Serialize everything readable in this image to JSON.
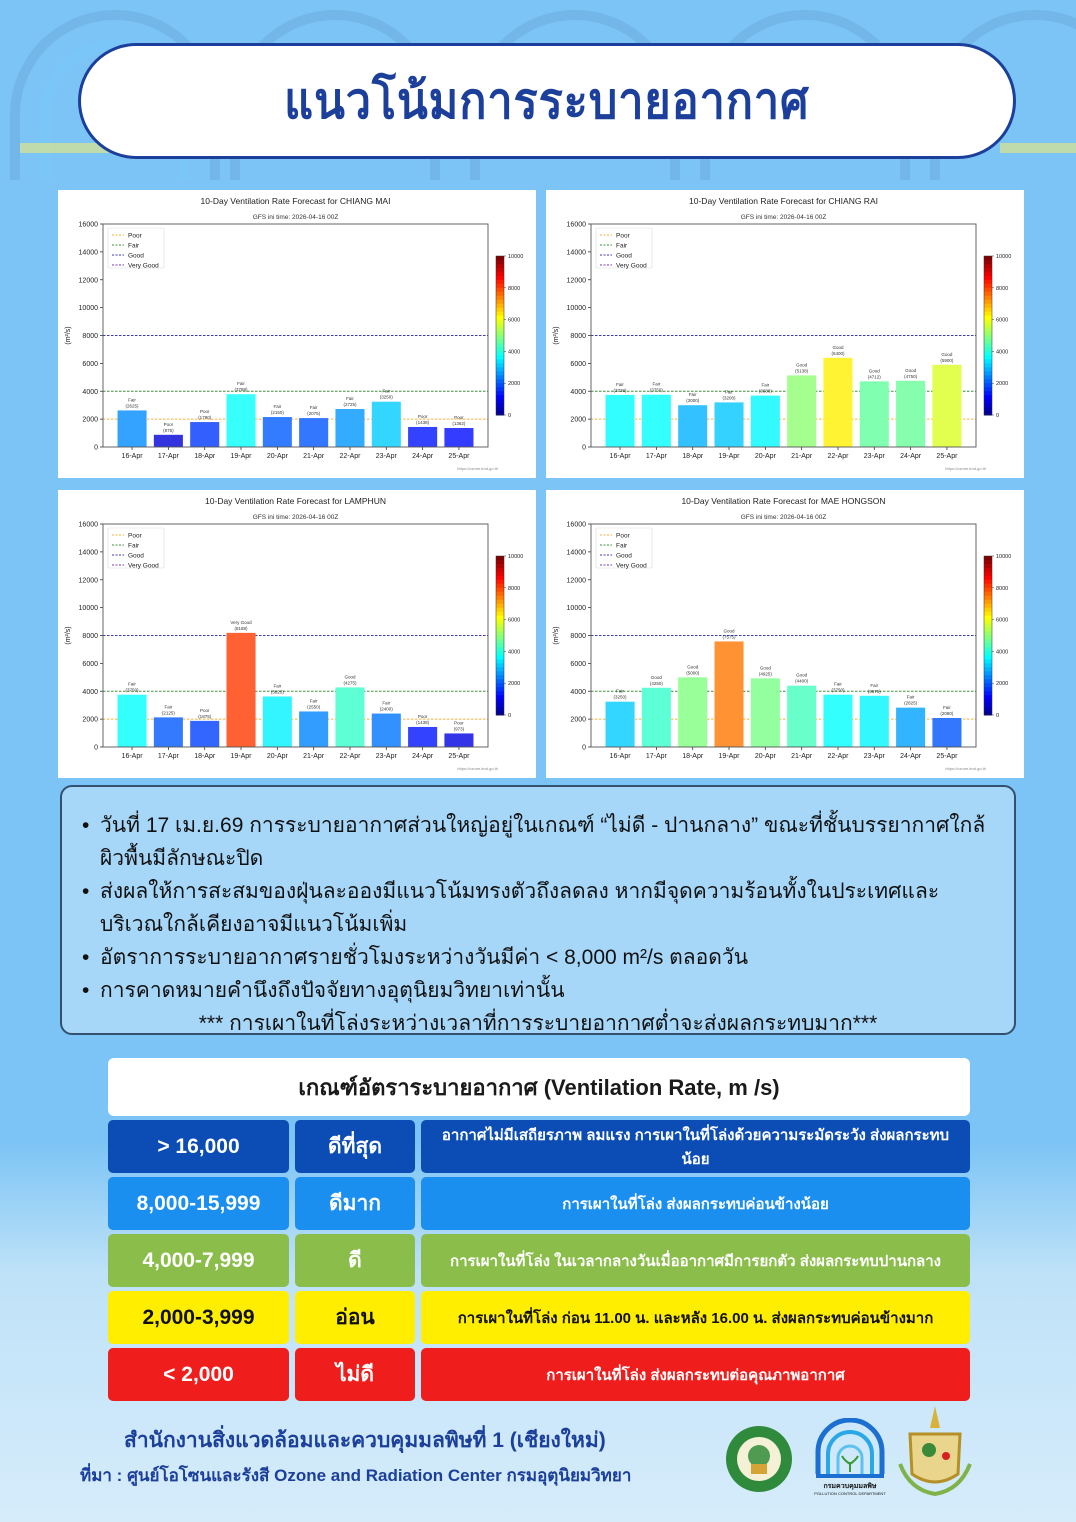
{
  "title": "แนวโน้มการระบายอากาศ",
  "chart_common": {
    "type": "bar",
    "subtitle": "GFS ini time: 2026-04-16 00Z",
    "ylabel": "(m²/s)",
    "xlabel": "",
    "categories": [
      "16-Apr",
      "17-Apr",
      "18-Apr",
      "19-Apr",
      "20-Apr",
      "21-Apr",
      "22-Apr",
      "23-Apr",
      "24-Apr",
      "25-Apr"
    ],
    "ylim": [
      0,
      16000
    ],
    "yticks": [
      0,
      2000,
      4000,
      6000,
      8000,
      10000,
      12000,
      14000,
      16000
    ],
    "legend": [
      "Poor",
      "Fair",
      "Good",
      "Very Good"
    ],
    "legend_position": "top-left",
    "threshold_lines": [
      {
        "name": "Poor",
        "value": 2000,
        "color": "#f5b041"
      },
      {
        "name": "Fair",
        "value": 4000,
        "color": "#3b8f3b"
      },
      {
        "name": "Good",
        "value": 8000,
        "color": "#3a3ab8"
      },
      {
        "name": "Very Good",
        "value": 16000,
        "color": "#7a3ab8"
      }
    ],
    "colorbar_range": [
      0,
      10000
    ],
    "colorbar_ticks": [
      0,
      2000,
      4000,
      6000,
      8000,
      10000
    ],
    "credit": "https://ozone.tmd.go.th"
  },
  "chart_data": [
    {
      "type": "bar",
      "title": "10-Day Ventilation Rate Forecast for CHIANG MAI",
      "categories": [
        "16-Apr",
        "17-Apr",
        "18-Apr",
        "19-Apr",
        "20-Apr",
        "21-Apr",
        "22-Apr",
        "23-Apr",
        "24-Apr",
        "25-Apr"
      ],
      "values": [
        2625,
        875,
        1790,
        3788,
        2150,
        2075,
        2725,
        3250,
        1438,
        1362
      ],
      "labels": [
        "Fair",
        "Poor",
        "Poor",
        "Fair",
        "Fair",
        "Fair",
        "Fair",
        "Fair",
        "Poor",
        "Poor"
      ],
      "ylabel": "(m²/s)",
      "ylim": [
        0,
        16000
      ]
    },
    {
      "type": "bar",
      "title": "10-Day Ventilation Rate Forecast for CHIANG RAI",
      "categories": [
        "16-Apr",
        "17-Apr",
        "18-Apr",
        "19-Apr",
        "20-Apr",
        "21-Apr",
        "22-Apr",
        "23-Apr",
        "24-Apr",
        "25-Apr"
      ],
      "values": [
        3738,
        3750,
        3000,
        3200,
        3688,
        5138,
        6400,
        4712,
        4750,
        5900
      ],
      "labels": [
        "Fair",
        "Fair",
        "Fair",
        "Fair",
        "Fair",
        "Good",
        "Good",
        "Good",
        "Good",
        "Good"
      ],
      "ylabel": "(m²/s)",
      "ylim": [
        0,
        16000
      ]
    },
    {
      "type": "bar",
      "title": "10-Day Ventilation Rate Forecast for LAMPHUN",
      "categories": [
        "16-Apr",
        "17-Apr",
        "18-Apr",
        "19-Apr",
        "20-Apr",
        "21-Apr",
        "22-Apr",
        "23-Apr",
        "24-Apr",
        "25-Apr"
      ],
      "values": [
        3750,
        2125,
        1875,
        8188,
        3625,
        2550,
        4275,
        2400,
        1438,
        973
      ],
      "labels": [
        "Fair",
        "Fair",
        "Poor",
        "Very Good",
        "Fair",
        "Fair",
        "Good",
        "Fair",
        "Poor",
        "Poor"
      ],
      "ylabel": "(m²/s)",
      "ylim": [
        0,
        16000
      ]
    },
    {
      "type": "bar",
      "title": "10-Day Ventilation Rate Forecast for MAE HONGSON",
      "categories": [
        "16-Apr",
        "17-Apr",
        "18-Apr",
        "19-Apr",
        "20-Apr",
        "21-Apr",
        "22-Apr",
        "23-Apr",
        "24-Apr",
        "25-Apr"
      ],
      "values": [
        3250,
        4250,
        5000,
        7575,
        4925,
        4400,
        3750,
        3675,
        2825,
        2080
      ],
      "labels": [
        "Fair",
        "Good",
        "Good",
        "Good",
        "Good",
        "Good",
        "Fair",
        "Fair",
        "Fair",
        "Fair"
      ],
      "ylabel": "(m²/s)",
      "ylim": [
        0,
        16000
      ]
    }
  ],
  "notes": {
    "items": [
      "วันที่ 17 เม.ย.69 การระบายอากาศส่วนใหญ่อยู่ในเกณฑ์ “ไม่ดี - ปานกลาง” ขณะที่ชั้นบรรยากาศใกล้ผิวพื้นมีลักษณะปิด",
      "ส่งผลให้การสะสมของฝุ่นละอองมีแนวโน้มทรงตัวถึงลดลง      หากมีจุดความร้อนทั้งในประเทศและบริเวณใกล้เคียงอาจมีแนวโน้มเพิ่ม",
      "อัตราการระบายอากาศรายชั่วโมงระหว่างวันมีค่า < 8,000 m²/s ตลอดวัน",
      "การคาดหมายคำนึงถึงปัจจัยทางอุตุนิยมวิทยาเท่านั้น"
    ],
    "warning": "*** การเผาในที่โล่งระหว่างเวลาที่การระบายอากาศต่ำจะส่งผลกระทบมาก***"
  },
  "criteria": {
    "header": "เกณฑ์อัตราระบายอากาศ (Ventilation Rate, m /s)",
    "rows": [
      {
        "range": "> 16,000",
        "level": "ดีที่สุด",
        "desc": "อากาศไม่มีเสถียรภาพ ลมแรง การเผาในที่โล่งด้วยความระมัดระวัง ส่งผลกระทบน้อย",
        "color": "#0b4db5",
        "text_color": "#ffffff"
      },
      {
        "range": "8,000-15,999",
        "level": "ดีมาก",
        "desc": "การเผาในที่โล่ง ส่งผลกระทบค่อนข้างน้อย",
        "color": "#1a8ff0",
        "text_color": "#ffffff"
      },
      {
        "range": "4,000-7,999",
        "level": "ดี",
        "desc": "การเผาในที่โล่ง ในเวลากลางวันเมื่ออากาศมีการยกตัว ส่งผลกระทบปานกลาง",
        "color": "#8bbd4a",
        "text_color": "#ffffff"
      },
      {
        "range": "2,000-3,999",
        "level": "อ่อน",
        "desc": "การเผาในที่โล่ง ก่อน 11.00 น. และหลัง 16.00 น. ส่งผลกระทบค่อนข้างมาก",
        "color": "#ffee00",
        "text_color": "#111111"
      },
      {
        "range": "< 2,000",
        "level": "ไม่ดี",
        "desc": "การเผาในที่โล่ง ส่งผลกระทบต่อคุณภาพอากาศ",
        "color": "#f01d1d",
        "text_color": "#ffffff"
      }
    ]
  },
  "footer": {
    "office": "สำนักงานสิ่งแวดล้อมและควบคุมมลพิษที่ 1 (เชียงใหม่)",
    "source": "ที่มา : ศูนย์โอโซนและรังสี Ozone and Radiation Center กรมอุตุนิยมวิทยา",
    "pcd_logo_text": "กรมควบคุมมลพิษ",
    "pcd_logo_subtext": "POLLUTION CONTROL DEPARTMENT"
  },
  "colors": {
    "background": "#7cc4f5",
    "title_blue": "#1b3f9a"
  }
}
